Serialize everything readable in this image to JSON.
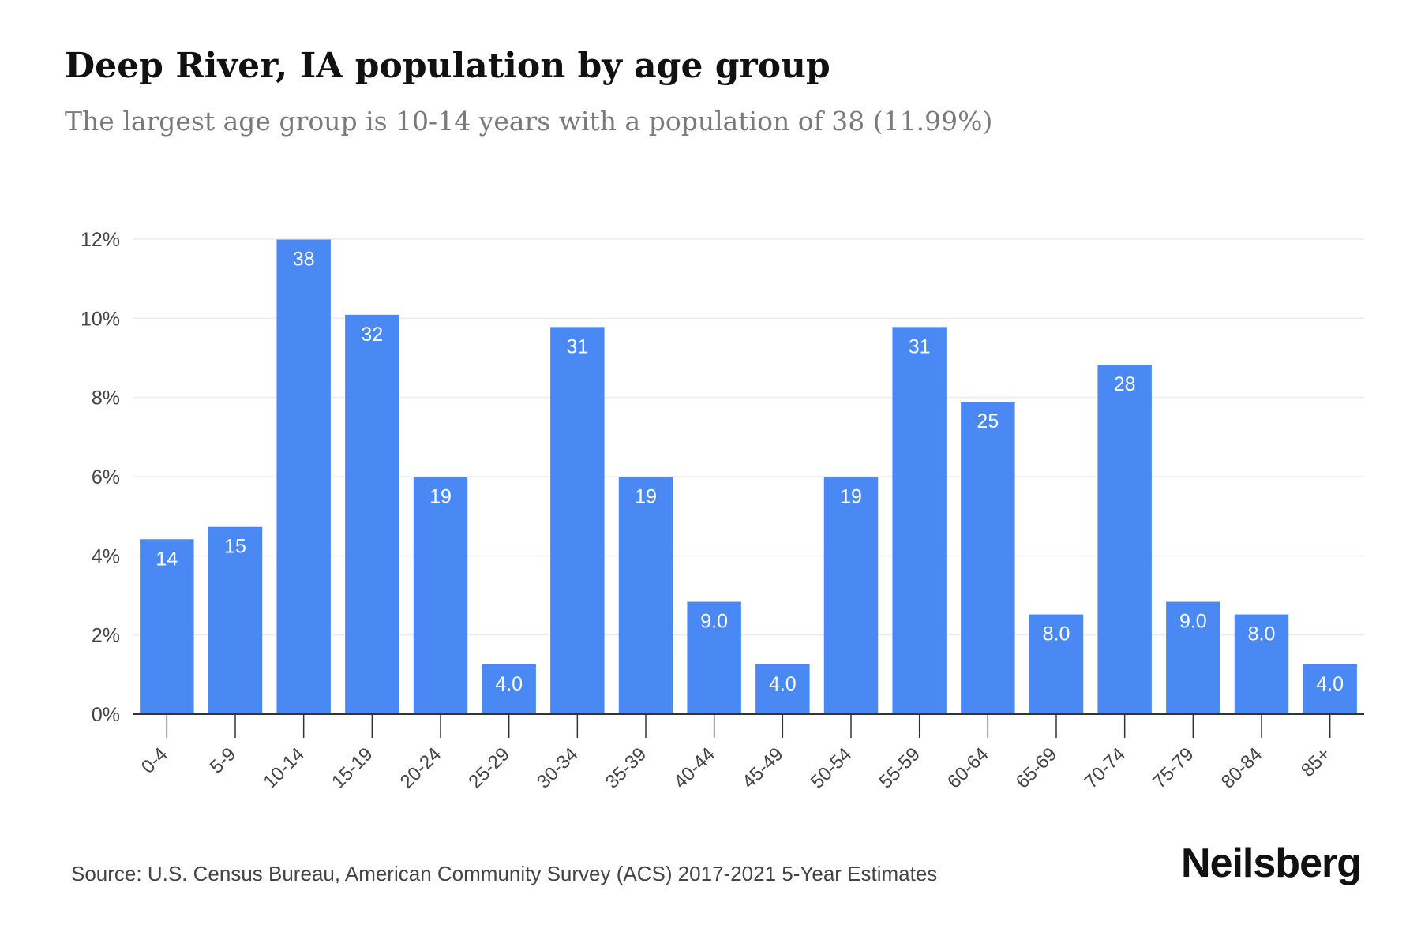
{
  "title": "Deep River, IA population by age group",
  "subtitle": "The largest age group is 10-14 years with a population of 38 (11.99%)",
  "source": "Source: U.S. Census Bureau, American Community Survey (ACS) 2017-2021 5-Year Estimates",
  "brand": "Neilsberg",
  "colors": {
    "bar": "#4a89f3",
    "bar_label": "#ffffff",
    "grid": "#ececec",
    "axis": "#333333",
    "tick_text": "#444444"
  },
  "chart_data": {
    "type": "bar",
    "categories": [
      "0-4",
      "5-9",
      "10-14",
      "15-19",
      "20-24",
      "25-29",
      "30-34",
      "35-39",
      "40-44",
      "45-49",
      "50-54",
      "55-59",
      "60-64",
      "65-69",
      "70-74",
      "75-79",
      "80-84",
      "85+"
    ],
    "values": [
      4.42,
      4.73,
      11.99,
      10.09,
      5.99,
      1.26,
      9.78,
      5.99,
      2.84,
      1.26,
      5.99,
      9.78,
      7.89,
      2.52,
      8.83,
      2.84,
      2.52,
      1.26
    ],
    "data_labels": [
      "14",
      "15",
      "38",
      "32",
      "19",
      "4.0",
      "31",
      "19",
      "9.0",
      "4.0",
      "19",
      "31",
      "25",
      "8.0",
      "28",
      "9.0",
      "8.0",
      "4.0"
    ],
    "y_ticks": [
      0,
      2,
      4,
      6,
      8,
      10,
      12
    ],
    "y_tick_labels": [
      "0%",
      "2%",
      "4%",
      "6%",
      "8%",
      "10%",
      "12%"
    ],
    "ylim": [
      0,
      12
    ],
    "grid": true,
    "xlabel": "",
    "ylabel": ""
  }
}
